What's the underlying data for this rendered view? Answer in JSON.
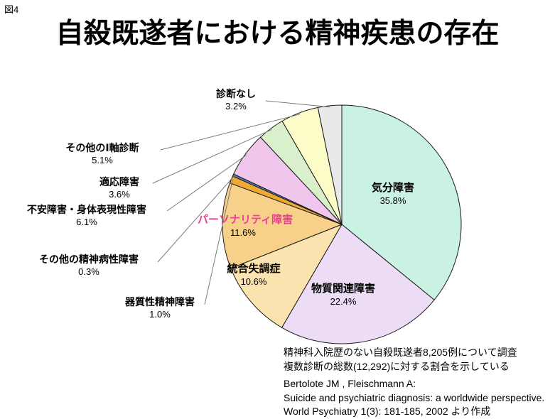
{
  "figure_label": "図4",
  "title": "自殺既遂者における精神疾患の存在",
  "chart_data": {
    "type": "pie",
    "title": "自殺既遂者における精神疾患の存在",
    "start_angle_deg": 0,
    "direction": "clockwise",
    "total_note": "percentages of 12,292 diagnoses",
    "slices": [
      {
        "label": "気分障害",
        "value": 35.8,
        "pct_label": "35.8%",
        "color": "#c9f2e2"
      },
      {
        "label": "物質関連障害",
        "value": 22.4,
        "pct_label": "22.4%",
        "color": "#ecdcf6"
      },
      {
        "label": "統合失調症",
        "value": 10.6,
        "pct_label": "10.6%",
        "color": "#fbe3b0"
      },
      {
        "label": "パーソナリティ障害",
        "value": 11.6,
        "pct_label": "11.6%",
        "color": "#f7d189",
        "label_color": "#ee3d96"
      },
      {
        "label": "器質性精神障害",
        "value": 1.0,
        "pct_label": "1.0%",
        "color": "#efa832"
      },
      {
        "label": "その他の精神病性障害",
        "value": 0.3,
        "pct_label": "0.3%",
        "color": "#4f81bd"
      },
      {
        "label": "不安障害・身体表現性障害",
        "value": 6.1,
        "pct_label": "6.1%",
        "color": "#f0c6ec"
      },
      {
        "label": "適応障害",
        "value": 3.6,
        "pct_label": "3.6%",
        "color": "#daf0cc"
      },
      {
        "label": "その他のⅠ軸診断",
        "value": 5.1,
        "pct_label": "5.1%",
        "color": "#fcfcc8"
      },
      {
        "label": "診断なし",
        "value": 3.2,
        "pct_label": "3.2%",
        "color": "#e9e9e9"
      }
    ]
  },
  "notes": {
    "survey_line1": "精神科入院歴のない自殺既遂者8,205例について調査",
    "survey_line2": "複数診断の総数(12,292)に対する割合を示している",
    "citation_line1": "Bertolote JM , Fleischmann A:",
    "citation_line2": "Suicide and psychiatric diagnosis: a worldwide perspective.",
    "citation_line3": "World Psychiatry 1(3): 181-185, 2002  より作成"
  }
}
